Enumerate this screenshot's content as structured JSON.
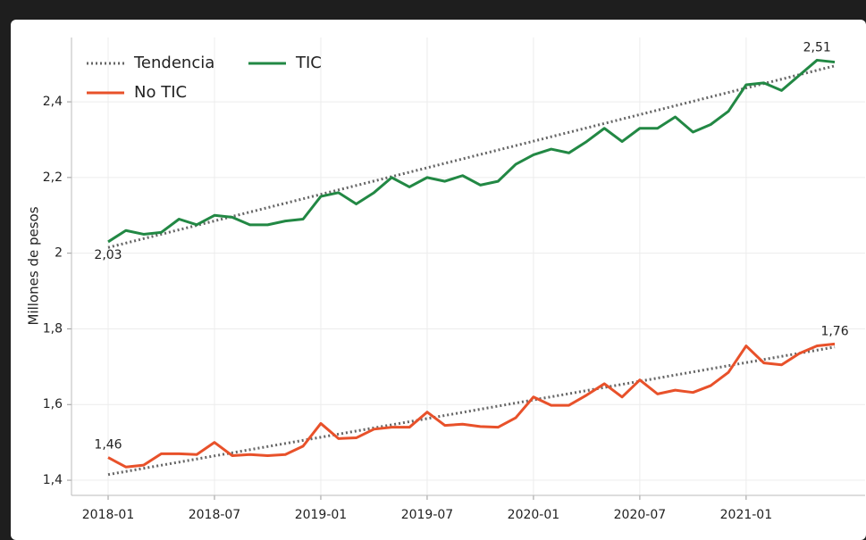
{
  "chart_data": {
    "type": "line",
    "y_label": "Millones de pesos",
    "categories": [
      "2018-01",
      null,
      null,
      null,
      null,
      null,
      "2018-07",
      null,
      null,
      null,
      null,
      null,
      "2019-01",
      null,
      null,
      null,
      null,
      null,
      "2019-07",
      null,
      null,
      null,
      null,
      null,
      "2020-01",
      null,
      null,
      null,
      null,
      null,
      "2020-07",
      null,
      null,
      null,
      null,
      null,
      "2021-01",
      null,
      null,
      null,
      null,
      null
    ],
    "series": [
      {
        "name": "TIC",
        "color": "#228844",
        "values": [
          2.03,
          2.06,
          2.05,
          2.055,
          2.09,
          2.075,
          2.1,
          2.095,
          2.075,
          2.075,
          2.085,
          2.09,
          2.15,
          2.16,
          2.13,
          2.16,
          2.2,
          2.175,
          2.2,
          2.19,
          2.205,
          2.18,
          2.19,
          2.235,
          2.26,
          2.275,
          2.265,
          2.295,
          2.33,
          2.295,
          2.33,
          2.33,
          2.36,
          2.32,
          2.34,
          2.375,
          2.445,
          2.45,
          2.43,
          2.47,
          2.51,
          2.505
        ],
        "value_labels": [
          "2,03",
          null,
          null,
          null,
          null,
          null,
          null,
          null,
          null,
          null,
          null,
          null,
          null,
          null,
          null,
          null,
          null,
          null,
          null,
          null,
          null,
          null,
          null,
          null,
          null,
          null,
          null,
          null,
          null,
          null,
          null,
          null,
          null,
          null,
          null,
          null,
          null,
          null,
          null,
          null,
          "2,51",
          null
        ]
      },
      {
        "name": "No TIC",
        "color": "#e8512a",
        "values": [
          1.46,
          1.435,
          1.44,
          1.47,
          1.47,
          1.468,
          1.5,
          1.465,
          1.468,
          1.465,
          1.468,
          1.49,
          1.55,
          1.51,
          1.512,
          1.535,
          1.54,
          1.54,
          1.58,
          1.545,
          1.548,
          1.542,
          1.54,
          1.565,
          1.62,
          1.598,
          1.598,
          1.625,
          1.655,
          1.62,
          1.665,
          1.628,
          1.638,
          1.632,
          1.65,
          1.685,
          1.755,
          1.71,
          1.705,
          1.735,
          1.755,
          1.76
        ],
        "value_labels": [
          "1,46",
          null,
          null,
          null,
          null,
          null,
          null,
          null,
          null,
          null,
          null,
          null,
          null,
          null,
          null,
          null,
          null,
          null,
          null,
          null,
          null,
          null,
          null,
          null,
          null,
          null,
          null,
          null,
          null,
          null,
          null,
          null,
          null,
          null,
          null,
          null,
          null,
          null,
          null,
          null,
          null,
          "1,76"
        ]
      }
    ],
    "trend": {
      "name": "Tendencia",
      "color": "#666666",
      "lines": [
        [
          2.015,
          2.495
        ],
        [
          1.415,
          1.752
        ]
      ]
    },
    "ylim": [
      1.36,
      2.57
    ],
    "yticks": [
      {
        "value": 1.4,
        "label": "1,4"
      },
      {
        "value": 1.6,
        "label": "1,6"
      },
      {
        "value": 1.8,
        "label": "1,8"
      },
      2,
      {
        "value": 2.2,
        "label": "2,2"
      },
      {
        "value": 2.4,
        "label": "2,4"
      }
    ],
    "grid": true
  }
}
